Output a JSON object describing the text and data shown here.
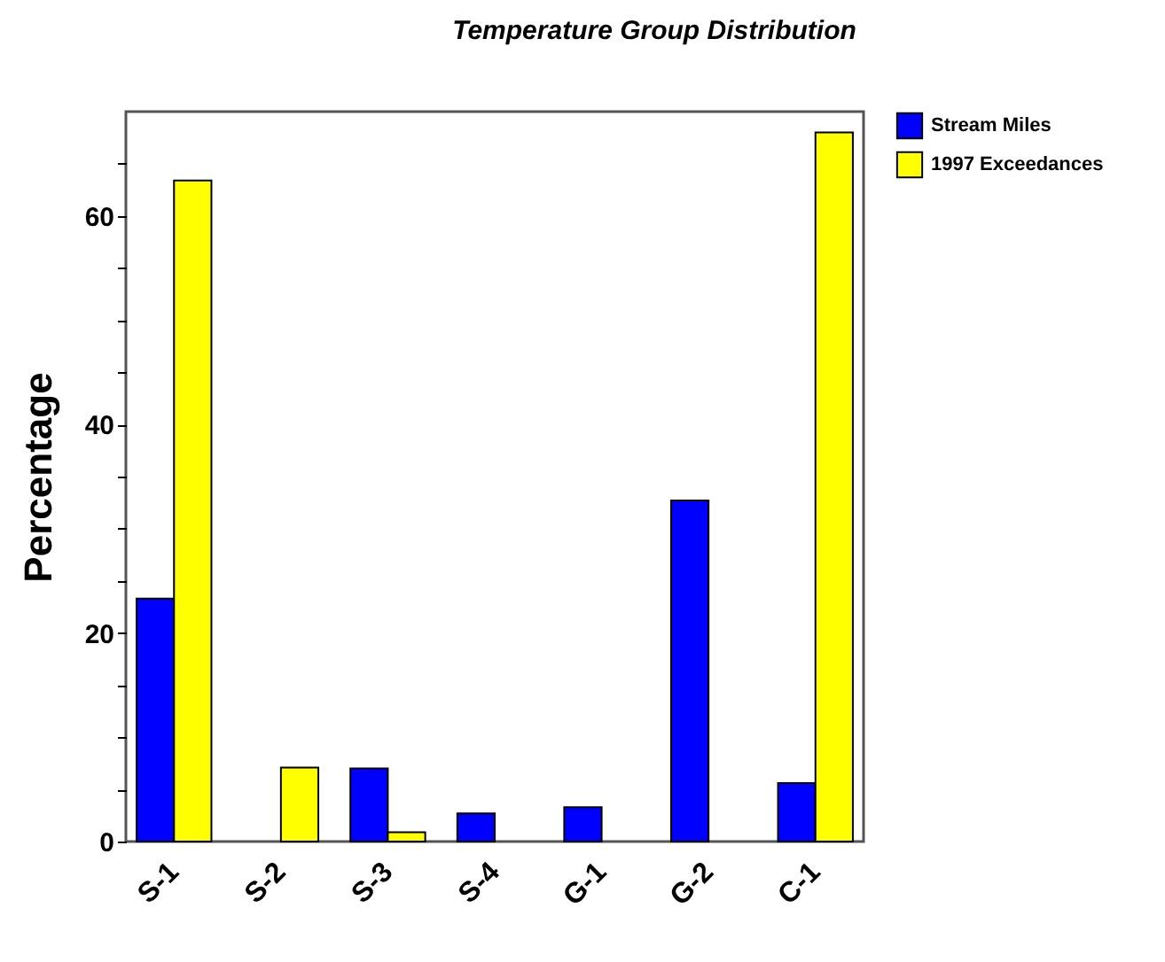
{
  "chart_data": {
    "type": "bar",
    "title": "Temperature Group Distribution",
    "ylabel": "Percentage",
    "categories": [
      "S-1",
      "S-2",
      "S-3",
      "S-4",
      "G-1",
      "G-2",
      "C-1"
    ],
    "series": [
      {
        "name": "Stream Miles",
        "color": "#0000ff",
        "values": [
          23.3,
          null,
          7.0,
          2.7,
          3.3,
          32.7,
          5.6
        ]
      },
      {
        "name": "1997 Exceedances",
        "color": "#ffff00",
        "values": [
          63.4,
          7.1,
          0.9,
          null,
          null,
          null,
          68.0
        ]
      }
    ],
    "ylim": [
      0,
      70
    ],
    "yticks": [
      0,
      {
        "value": 5,
        "label": null
      },
      {
        "value": 10,
        "label": null
      },
      {
        "value": 15,
        "label": null
      },
      20,
      {
        "value": 25,
        "label": null
      },
      {
        "value": 30,
        "label": null
      },
      {
        "value": 35,
        "label": null
      },
      40,
      {
        "value": 45,
        "label": null
      },
      {
        "value": 50,
        "label": null
      },
      {
        "value": 55,
        "label": null
      },
      60,
      {
        "value": 65,
        "label": null
      }
    ],
    "legend": "top right",
    "grid": false
  }
}
